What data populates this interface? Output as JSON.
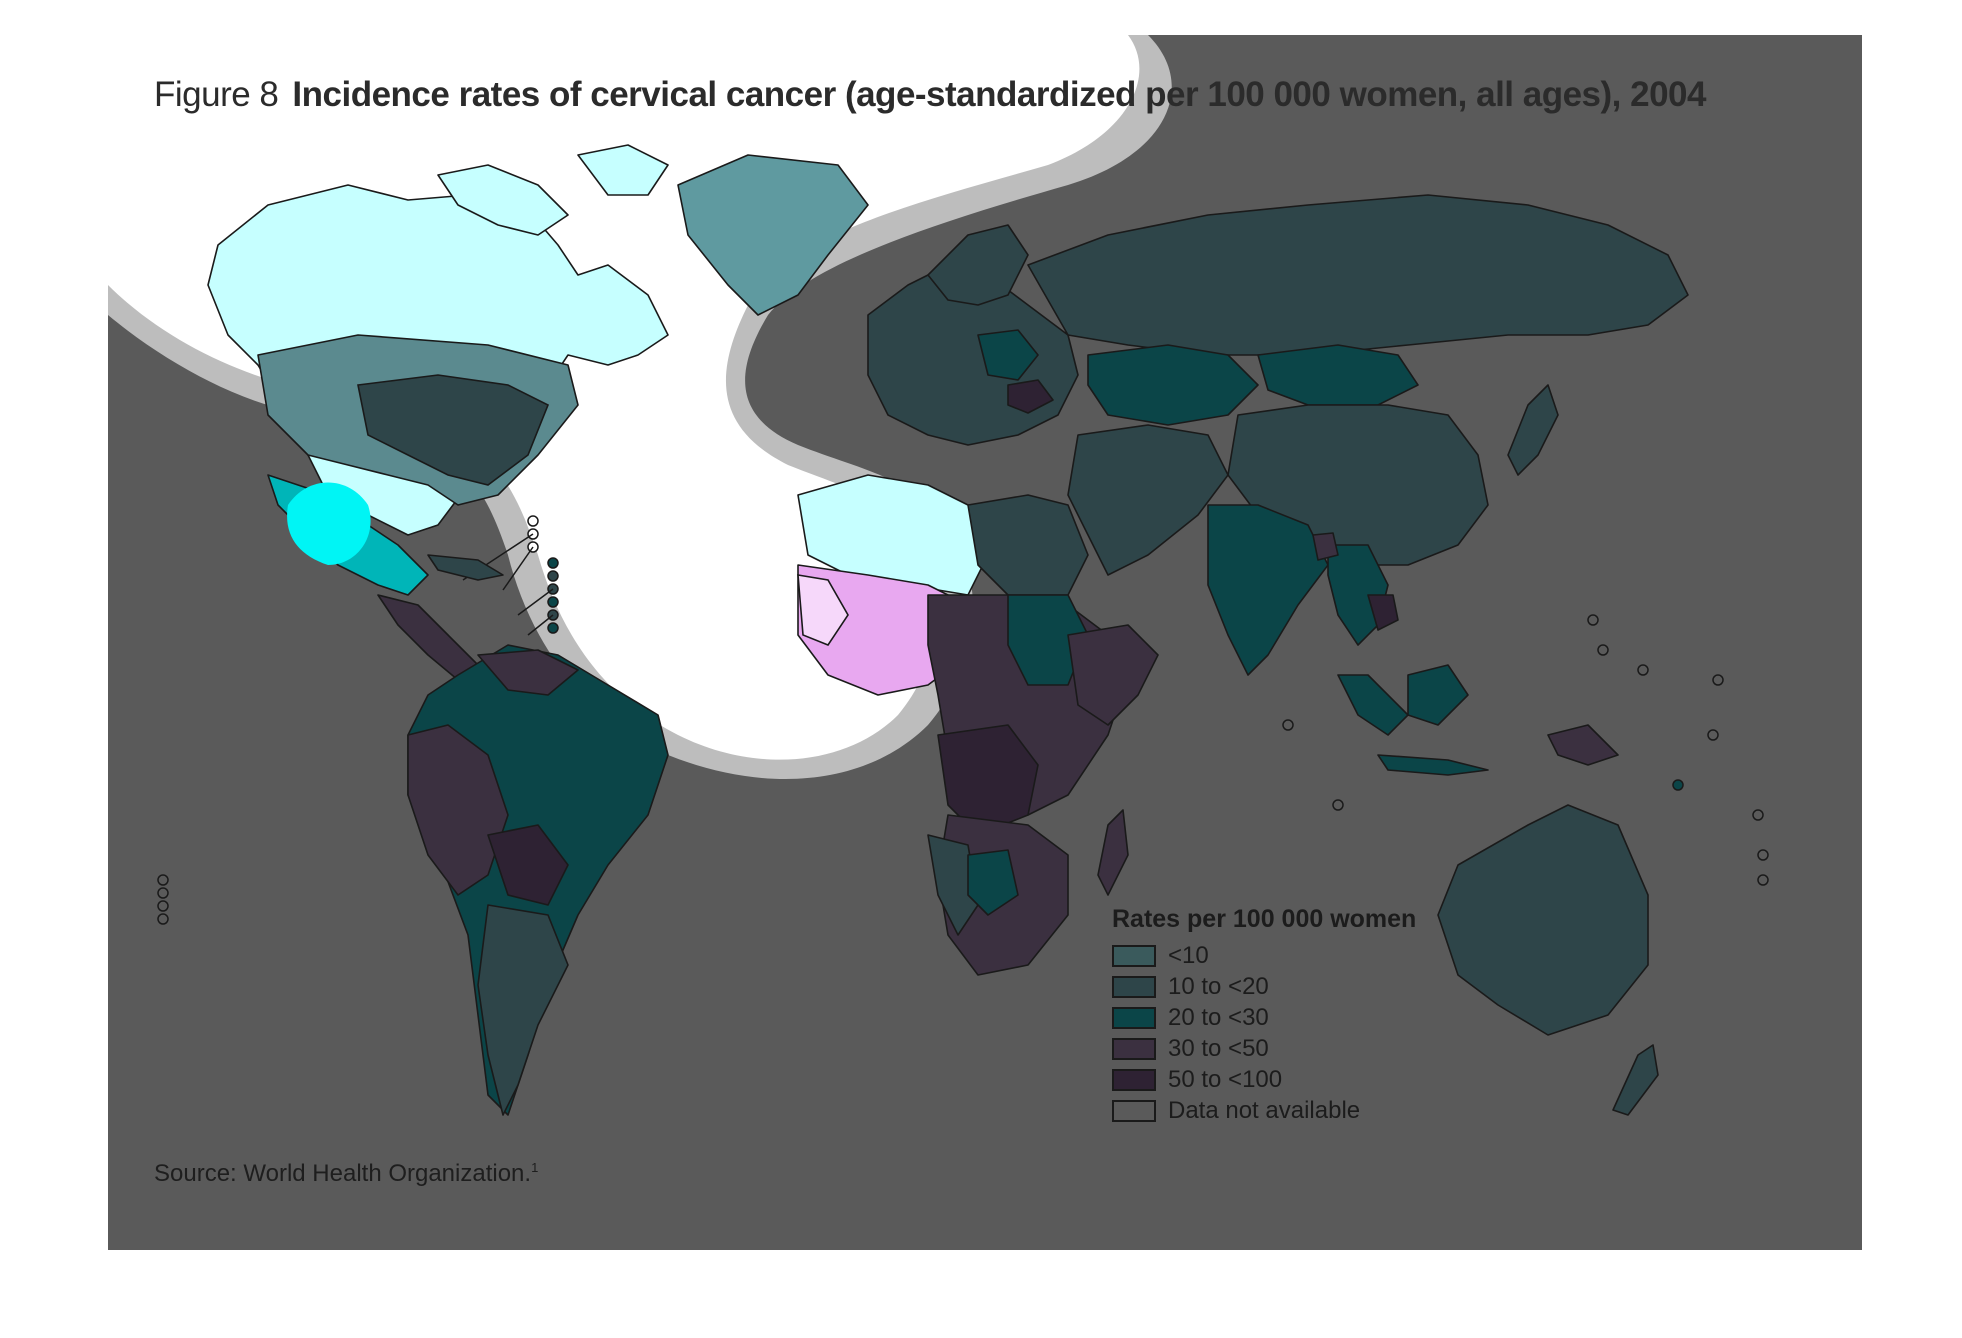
{
  "figure": {
    "label": "Figure 8",
    "title": "Incidence rates of cervical cancer (age-standardized per 100 000 women, all ages), 2004",
    "source_text": "Source: World Health Organization.",
    "source_ref": "1",
    "background_color": "#5a5a5a"
  },
  "legend": {
    "title": "Rates per 100 000 women",
    "items": [
      {
        "label": "<10",
        "color": "#3a5a5c"
      },
      {
        "label": "10 to <20",
        "color": "#2e4549"
      },
      {
        "label": "20 to <30",
        "color": "#0b4548"
      },
      {
        "label": "30 to <50",
        "color": "#3b3040"
      },
      {
        "label": "50 to <100",
        "color": "#2e2233"
      },
      {
        "label": "Data not available",
        "color": "#5a5a5a"
      }
    ]
  },
  "overlay_colors": {
    "glow_outer": "#bdbdbd",
    "glow_inner": "#ffffff",
    "north_america_tint": "#c6ffff",
    "mexico_tint": "#00f5f5",
    "west_africa_tint": "#e8a8f0"
  }
}
